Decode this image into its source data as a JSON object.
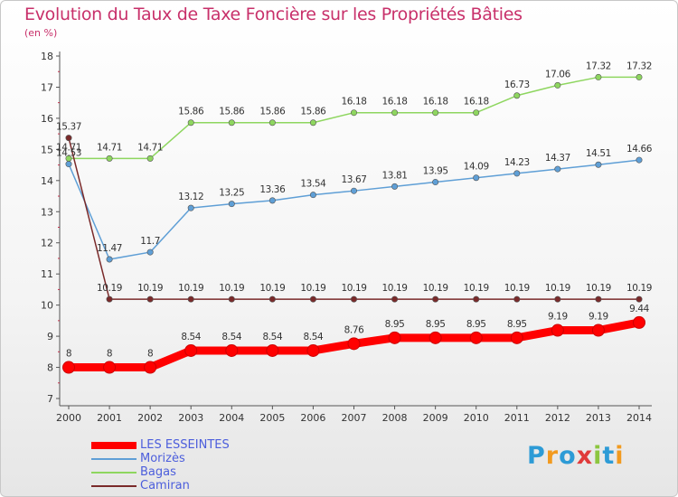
{
  "header": {
    "title": "Evolution du Taux de Taxe Foncière sur les Propriétés Bâties",
    "unit": "(en %)"
  },
  "logo": {
    "letters": [
      "P",
      "r",
      "o",
      "x",
      "i",
      "t",
      "i"
    ],
    "colors": [
      "#2d9bd6",
      "#f29a1f",
      "#2d9bd6",
      "#e03a3a",
      "#8cc63f",
      "#2d9bd6",
      "#f29a1f"
    ]
  },
  "chart_data": {
    "type": "line",
    "title": "Evolution du Taux de Taxe Foncière sur les Propriétés Bâties",
    "ylabel": "(en %)",
    "xlabel": "",
    "x": [
      "2000",
      "2001",
      "2002",
      "2003",
      "2004",
      "2005",
      "2006",
      "2007",
      "2008",
      "2009",
      "2010",
      "2011",
      "2012",
      "2013",
      "2014"
    ],
    "ylim": [
      7,
      18
    ],
    "yticks": [
      "7",
      "8",
      "9",
      "10",
      "11",
      "12",
      "13",
      "14",
      "15",
      "16",
      "17",
      "18"
    ],
    "grid": false,
    "legend_position": "bottom-left",
    "series": [
      {
        "name": "LES ESSEINTES",
        "color": "#ff0000",
        "values": [
          8,
          8,
          8,
          8.54,
          8.54,
          8.54,
          8.54,
          8.76,
          8.95,
          8.95,
          8.95,
          8.95,
          9.19,
          9.19,
          9.44
        ],
        "labels": [
          "8",
          "8",
          "8",
          "8.54",
          "8.54",
          "8.54",
          "8.54",
          "8.76",
          "8.95",
          "8.95",
          "8.95",
          "8.95",
          "9.19",
          "9.19",
          "9.44"
        ]
      },
      {
        "name": "Morizès",
        "color": "#5f9fd6",
        "values": [
          14.53,
          11.47,
          11.7,
          13.12,
          13.25,
          13.36,
          13.54,
          13.67,
          13.81,
          13.95,
          14.09,
          14.23,
          14.37,
          14.51,
          14.66
        ],
        "labels": [
          "14.53",
          "11.47",
          "11.7",
          "13.12",
          "13.25",
          "13.36",
          "13.54",
          "13.67",
          "13.81",
          "13.95",
          "14.09",
          "14.23",
          "14.37",
          "14.51",
          "14.66"
        ]
      },
      {
        "name": "Bagas",
        "color": "#8ed65f",
        "values": [
          14.71,
          14.71,
          14.71,
          15.86,
          15.86,
          15.86,
          15.86,
          16.18,
          16.18,
          16.18,
          16.18,
          16.73,
          17.06,
          17.32,
          17.32
        ],
        "labels": [
          "14.71",
          "14.71",
          "14.71",
          "15.86",
          "15.86",
          "15.86",
          "15.86",
          "16.18",
          "16.18",
          "16.18",
          "16.18",
          "16.73",
          "17.06",
          "17.32",
          "17.32"
        ]
      },
      {
        "name": "Camiran",
        "color": "#7a2a2a",
        "values": [
          15.37,
          10.19,
          10.19,
          10.19,
          10.19,
          10.19,
          10.19,
          10.19,
          10.19,
          10.19,
          10.19,
          10.19,
          10.19,
          10.19,
          10.19
        ],
        "labels": [
          "15.37",
          "10.19",
          "10.19",
          "10.19",
          "10.19",
          "10.19",
          "10.19",
          "10.19",
          "10.19",
          "10.19",
          "10.19",
          "10.19",
          "10.19",
          "10.19",
          "10.19"
        ]
      }
    ]
  }
}
